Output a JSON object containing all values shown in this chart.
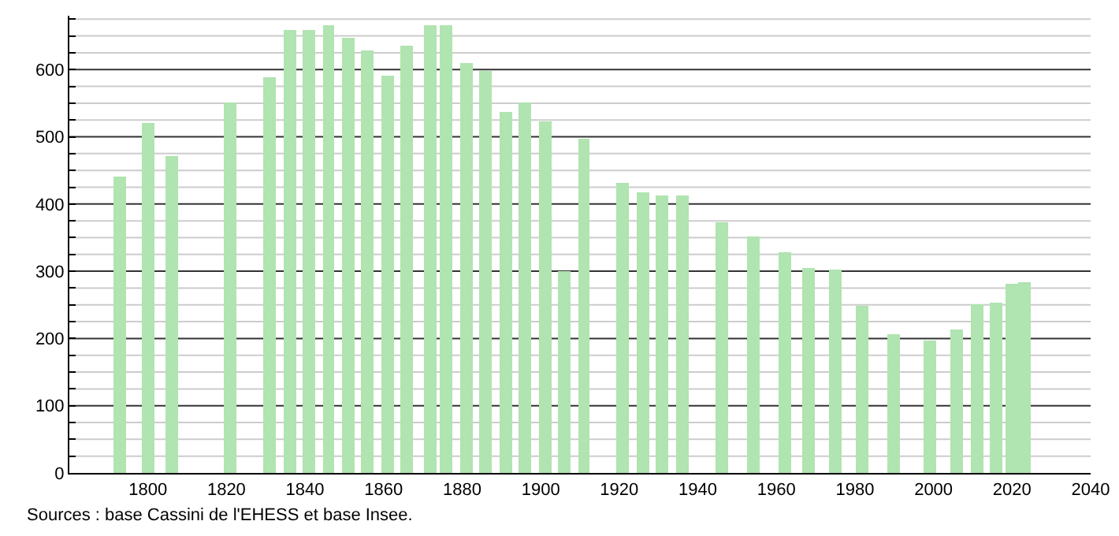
{
  "chart_data": {
    "type": "bar",
    "x": [
      1793,
      1800,
      1806,
      1821,
      1831,
      1836,
      1841,
      1846,
      1851,
      1856,
      1861,
      1866,
      1872,
      1876,
      1881,
      1886,
      1891,
      1896,
      1901,
      1906,
      1911,
      1921,
      1926,
      1931,
      1936,
      1946,
      1954,
      1962,
      1968,
      1975,
      1982,
      1990,
      1999,
      2006,
      2011,
      2016,
      2020,
      2023
    ],
    "values": [
      440,
      520,
      471,
      550,
      588,
      659,
      659,
      666,
      648,
      629,
      592,
      635,
      666,
      666,
      610,
      599,
      536,
      550,
      523,
      300,
      497,
      431,
      417,
      412,
      412,
      373,
      352,
      328,
      304,
      302,
      249,
      207,
      197,
      214,
      251,
      253,
      282,
      284
    ],
    "color": "#b0e4b0",
    "xlim": [
      1780,
      2040
    ],
    "xticks": [
      1800,
      1820,
      1840,
      1860,
      1880,
      1900,
      1920,
      1940,
      1960,
      1980,
      2000,
      2020,
      2040
    ],
    "ylim": [
      0,
      680
    ],
    "yticks": [
      0,
      {
        "value": 25,
        "label": null
      },
      {
        "value": 50,
        "label": null
      },
      {
        "value": 75,
        "label": null
      },
      100,
      {
        "value": 125,
        "label": null
      },
      {
        "value": 150,
        "label": null
      },
      {
        "value": 175,
        "label": null
      },
      200,
      {
        "value": 225,
        "label": null
      },
      {
        "value": 250,
        "label": null
      },
      {
        "value": 275,
        "label": null
      },
      300,
      {
        "value": 325,
        "label": null
      },
      {
        "value": 350,
        "label": null
      },
      {
        "value": 375,
        "label": null
      },
      400,
      {
        "value": 425,
        "label": null
      },
      {
        "value": 450,
        "label": null
      },
      {
        "value": 475,
        "label": null
      },
      500,
      {
        "value": 525,
        "label": null
      },
      {
        "value": 550,
        "label": null
      },
      {
        "value": 575,
        "label": null
      },
      600,
      {
        "value": 625,
        "label": null
      },
      {
        "value": 650,
        "label": null
      },
      {
        "value": 675,
        "label": null
      }
    ],
    "grid": "y",
    "annotations": [
      "Sources : base Cassini de l'EHESS et base Insee."
    ]
  }
}
